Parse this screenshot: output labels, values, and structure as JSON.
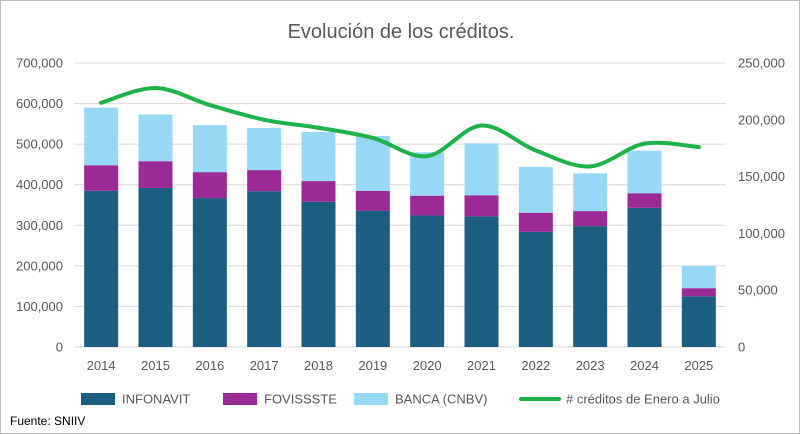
{
  "chart_data": {
    "type": "bar",
    "stacked": true,
    "title": "Evolución de los créditos.",
    "categories": [
      "2014",
      "2015",
      "2016",
      "2017",
      "2018",
      "2019",
      "2020",
      "2021",
      "2022",
      "2023",
      "2024",
      "2025"
    ],
    "series": [
      {
        "name": "INFONAVIT",
        "axis": "left",
        "color": "#1b5e80",
        "values": [
          385000,
          392000,
          367000,
          384000,
          358000,
          336000,
          324000,
          322000,
          284000,
          298000,
          343000,
          125000
        ]
      },
      {
        "name": "FOVISSSTE",
        "axis": "left",
        "color": "#9c2a96",
        "values": [
          63000,
          66000,
          64000,
          52000,
          51000,
          49000,
          49000,
          52000,
          47000,
          37000,
          36000,
          20000
        ]
      },
      {
        "name": "BANCA (CNBV)",
        "axis": "left",
        "color": "#97d8f5",
        "values": [
          142000,
          115000,
          116000,
          104000,
          121000,
          135000,
          107000,
          128000,
          113000,
          93000,
          105000,
          55000
        ]
      }
    ],
    "line_series": {
      "name": "# créditos de Enero a Julio",
      "axis": "right",
      "type": "line",
      "color": "#1fb24a",
      "values": [
        215000,
        228000,
        213000,
        200000,
        193000,
        184000,
        168000,
        195000,
        173000,
        159000,
        179000,
        176000
      ]
    },
    "y_left": {
      "min": 0,
      "max": 700000,
      "step": 100000,
      "ticks": [
        "0",
        "100,000",
        "200,000",
        "300,000",
        "400,000",
        "500,000",
        "600,000",
        "700,000"
      ]
    },
    "y_right": {
      "min": 0,
      "max": 250000,
      "step": 50000,
      "ticks": [
        "0",
        "50,000",
        "100,000",
        "150,000",
        "200,000",
        "250,000"
      ]
    },
    "grid": true,
    "legend_position": "bottom"
  },
  "footer": {
    "source": "Fuente: SNIIV"
  }
}
